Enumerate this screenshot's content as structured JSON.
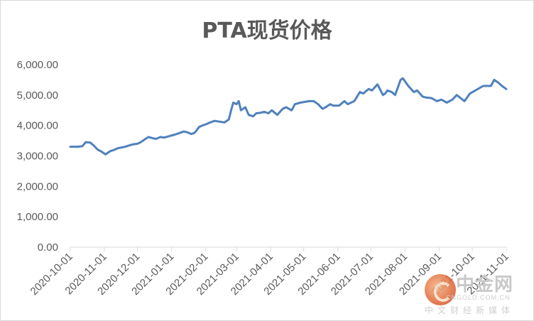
{
  "chart_data": {
    "type": "line",
    "title": "PTA现货价格",
    "xlabel": "",
    "ylabel": "",
    "ylim": [
      0,
      6000
    ],
    "y_ticks": [
      "0.00",
      "1,000.00",
      "2,000.00",
      "3,000.00",
      "4,000.00",
      "5,000.00",
      "6,000.00"
    ],
    "x_ticks": [
      "2020-10-01",
      "2020-11-01",
      "2020-12-01",
      "2021-01-01",
      "2021-02-01",
      "2021-03-01",
      "2021-04-01",
      "2021-05-01",
      "2021-06-01",
      "2021-07-01",
      "2021-08-01",
      "2021-09-01",
      "2021-10-01",
      "2021-11-01"
    ],
    "grid": false,
    "legend": "none",
    "line_color": "#4f81bd",
    "series": [
      {
        "x": [
          "2020-10-01",
          "2020-10-08",
          "2020-10-12",
          "2020-10-15",
          "2020-10-19",
          "2020-10-22",
          "2020-10-26",
          "2020-10-29",
          "2020-11-02",
          "2020-11-06",
          "2020-11-10",
          "2020-11-13",
          "2020-11-17",
          "2020-11-20",
          "2020-11-24",
          "2020-11-27",
          "2020-12-01",
          "2020-12-04",
          "2020-12-08",
          "2020-12-11",
          "2020-12-15",
          "2020-12-18",
          "2020-12-22",
          "2020-12-25",
          "2020-12-29",
          "2021-01-04",
          "2021-01-08",
          "2021-01-12",
          "2021-01-15",
          "2021-01-19",
          "2021-01-22",
          "2021-01-26",
          "2021-01-29",
          "2021-02-02",
          "2021-02-05",
          "2021-02-09",
          "2021-02-18",
          "2021-02-22",
          "2021-02-24",
          "2021-02-26",
          "2021-03-01",
          "2021-03-03",
          "2021-03-05",
          "2021-03-09",
          "2021-03-12",
          "2021-03-16",
          "2021-03-19",
          "2021-03-23",
          "2021-03-26",
          "2021-03-30",
          "2021-04-02",
          "2021-04-07",
          "2021-04-12",
          "2021-04-15",
          "2021-04-20",
          "2021-04-23",
          "2021-04-28",
          "2021-05-06",
          "2021-05-10",
          "2021-05-14",
          "2021-05-18",
          "2021-05-21",
          "2021-05-25",
          "2021-05-28",
          "2021-06-02",
          "2021-06-07",
          "2021-06-10",
          "2021-06-16",
          "2021-06-21",
          "2021-06-24",
          "2021-06-29",
          "2021-07-02",
          "2021-07-07",
          "2021-07-12",
          "2021-07-14",
          "2021-07-16",
          "2021-07-20",
          "2021-07-23",
          "2021-07-28",
          "2021-07-30",
          "2021-08-04",
          "2021-08-09",
          "2021-08-12",
          "2021-08-17",
          "2021-08-20",
          "2021-08-25",
          "2021-08-30",
          "2021-09-03",
          "2021-09-08",
          "2021-09-13",
          "2021-09-17",
          "2021-09-24",
          "2021-09-29",
          "2021-10-11",
          "2021-10-14",
          "2021-10-18",
          "2021-10-21",
          "2021-10-25",
          "2021-10-28",
          "2021-11-01"
        ],
        "values": [
          3300,
          3300,
          3320,
          3450,
          3440,
          3350,
          3200,
          3150,
          3050,
          3150,
          3200,
          3250,
          3280,
          3300,
          3350,
          3380,
          3400,
          3450,
          3550,
          3620,
          3580,
          3560,
          3620,
          3600,
          3640,
          3700,
          3750,
          3800,
          3780,
          3720,
          3760,
          3950,
          4000,
          4050,
          4100,
          4150,
          4100,
          4200,
          4500,
          4750,
          4700,
          4800,
          4500,
          4600,
          4350,
          4300,
          4400,
          4420,
          4450,
          4400,
          4500,
          4350,
          4550,
          4600,
          4500,
          4700,
          4750,
          4800,
          4800,
          4700,
          4550,
          4600,
          4700,
          4650,
          4650,
          4800,
          4700,
          4800,
          5100,
          5050,
          5200,
          5150,
          5350,
          5000,
          5050,
          5150,
          5100,
          5000,
          5500,
          5550,
          5300,
          5100,
          5150,
          4950,
          4920,
          4900,
          4800,
          4850,
          4750,
          4850,
          5000,
          4800,
          5050,
          5300,
          5300,
          5300,
          5500,
          5400,
          5300,
          5200
        ]
      }
    ]
  },
  "watermark": {
    "brand": "中金网",
    "url": "CNGOLD.COM.CN",
    "sub": "中文财经新媒体"
  }
}
